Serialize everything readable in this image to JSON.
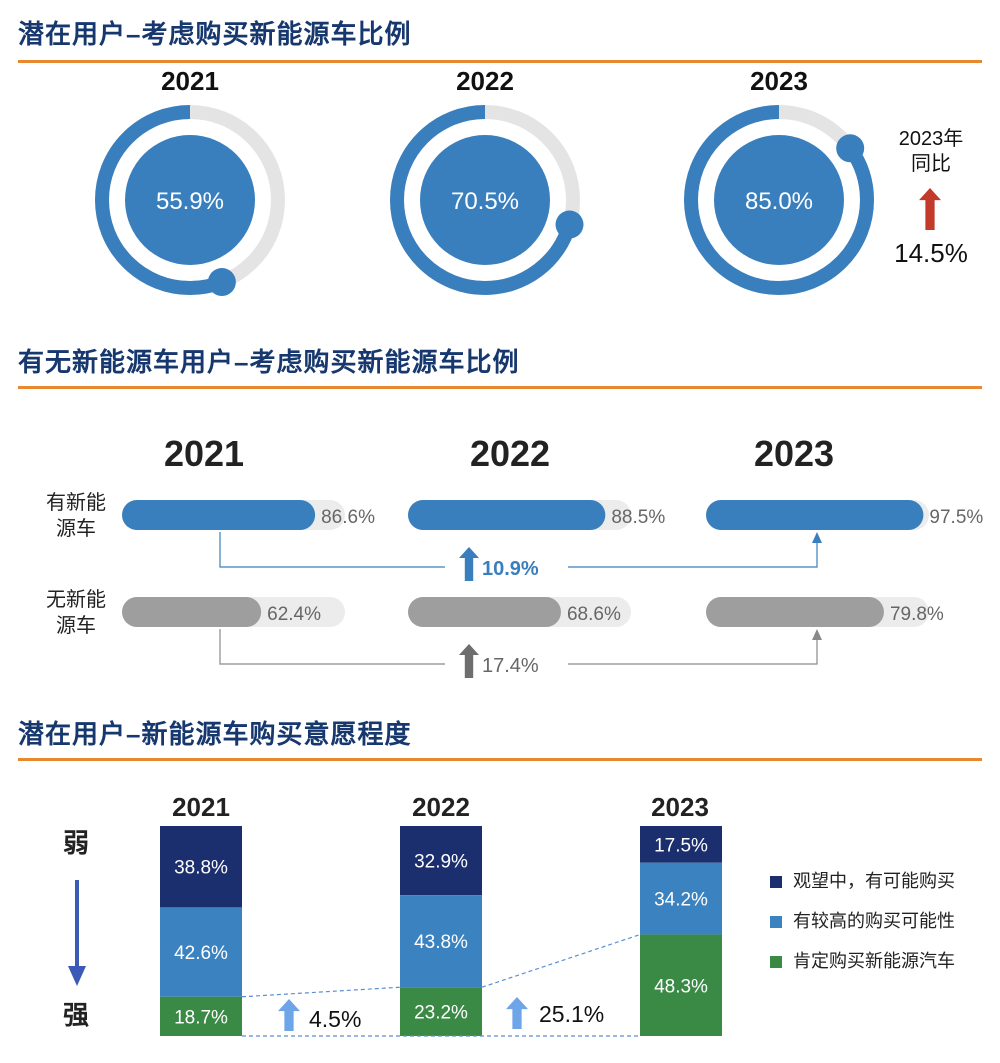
{
  "sections": {
    "s1_title": "潜在用户–考虑购买新能源车比例",
    "s2_title": "有无新能源车用户–考虑购买新能源车比例",
    "s3_title": "潜在用户–新能源车购买意愿程度"
  },
  "colors": {
    "primary_blue": "#3a7fbd",
    "track_gray": "#e4e4e4",
    "dark_navy": "#1b2f6e",
    "mid_blue": "#3b82c0",
    "green": "#3a8a45",
    "bar_gray": "#9e9e9e",
    "red_arrow": "#c23a2a",
    "light_arrow": "#6ea4e8",
    "accent_orange": "#e8892f"
  },
  "chart_data": [
    {
      "type": "pie",
      "title": "潜在用户–考虑购买新能源车比例",
      "categories": [
        "2021",
        "2022",
        "2023"
      ],
      "values": [
        55.9,
        70.5,
        85.0
      ],
      "value_labels": [
        "55.9%",
        "70.5%",
        "85.0%"
      ],
      "yoy": {
        "label_line1": "2023年",
        "label_line2": "同比",
        "value": 14.5,
        "value_label": "14.5%",
        "direction": "up"
      }
    },
    {
      "type": "bar",
      "title": "有无新能源车用户–考虑购买新能源车比例",
      "categories": [
        "2021",
        "2022",
        "2023"
      ],
      "ylim": [
        0,
        100
      ],
      "series": [
        {
          "name_line1": "有新能",
          "name_line2": "源车",
          "values": [
            86.6,
            88.5,
            97.5
          ],
          "value_labels": [
            "86.6%",
            "88.5%",
            "97.5%"
          ]
        },
        {
          "name_line1": "无新能",
          "name_line2": "源车",
          "values": [
            62.4,
            68.6,
            79.8
          ],
          "value_labels": [
            "62.4%",
            "68.6%",
            "79.8%"
          ]
        }
      ],
      "changes": [
        {
          "value": 10.9,
          "label": "10.9%"
        },
        {
          "value": 17.4,
          "label": "17.4%"
        }
      ]
    },
    {
      "type": "bar",
      "stacked": true,
      "title": "潜在用户–新能源车购买意愿程度",
      "categories": [
        "2021",
        "2022",
        "2023"
      ],
      "axis_top": "弱",
      "axis_bottom": "强",
      "series": [
        {
          "name": "观望中，有可能购买",
          "values": [
            38.8,
            32.9,
            17.5
          ],
          "value_labels": [
            "38.8%",
            "32.9%",
            "17.5%"
          ]
        },
        {
          "name": "有较高的购买可能性",
          "values": [
            42.6,
            43.8,
            34.2
          ],
          "value_labels": [
            "42.6%",
            "43.8%",
            "34.2%"
          ]
        },
        {
          "name": "肯定购买新能源汽车",
          "values": [
            18.7,
            23.2,
            48.3
          ],
          "value_labels": [
            "18.7%",
            "23.2%",
            "48.3%"
          ]
        }
      ],
      "changes": [
        {
          "value": 4.5,
          "label": "4.5%"
        },
        {
          "value": 25.1,
          "label": "25.1%"
        }
      ]
    }
  ]
}
